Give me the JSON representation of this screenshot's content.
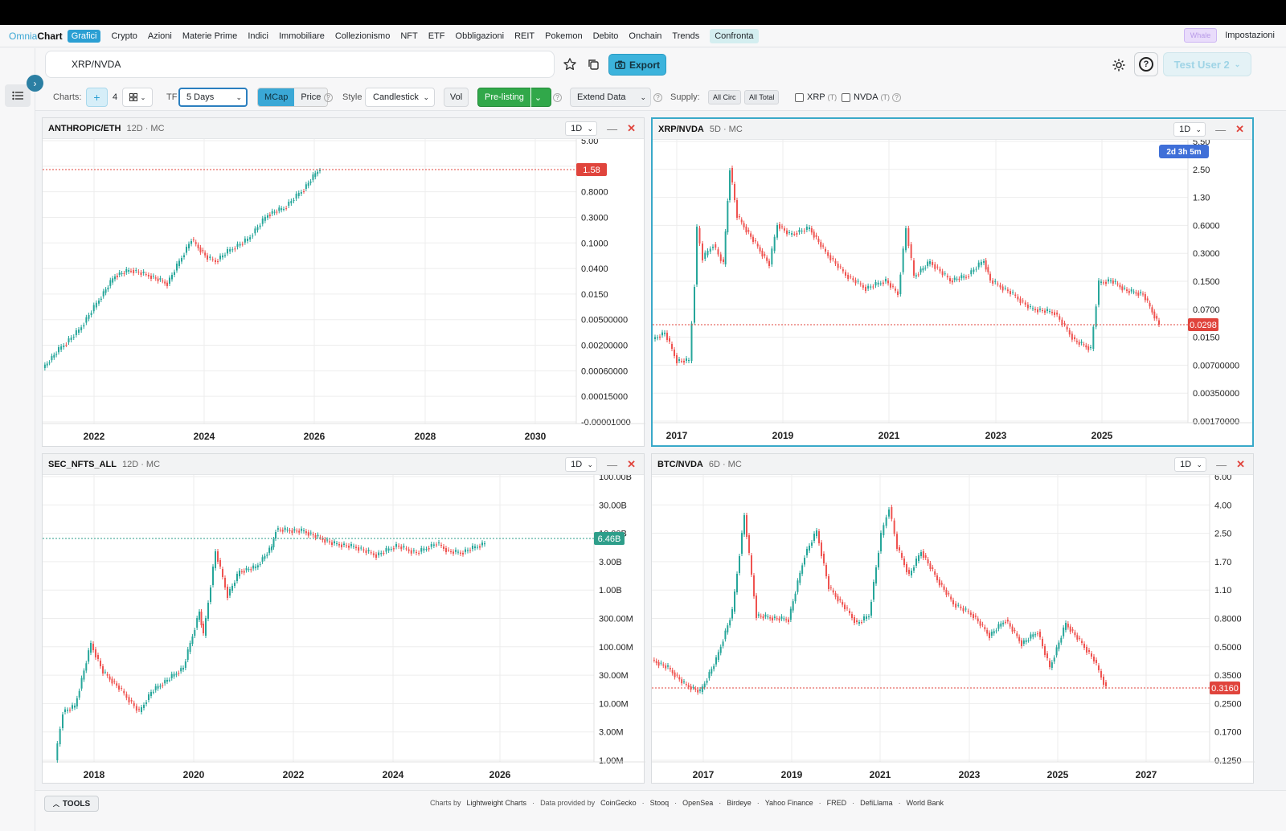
{
  "nav": {
    "logo_a": "Omnia",
    "logo_b": "Chart",
    "active": "Grafici",
    "items": [
      "Crypto",
      "Azioni",
      "Materie Prime",
      "Indici",
      "Immobiliare",
      "Collezionismo",
      "NFT",
      "ETF",
      "Obbligazioni",
      "REIT",
      "Pokemon",
      "Debito",
      "Onchain",
      "Trends"
    ],
    "compare": "Confronta",
    "whale": "Whale",
    "settings": "Impostazioni"
  },
  "search": {
    "value": "XRP/NVDA"
  },
  "header": {
    "export_label": "Export",
    "user_label": "Test User 2"
  },
  "toolbar": {
    "charts_label": "Charts:",
    "charts_count": "4",
    "tf_label": "TF",
    "tf_value": "5 Days",
    "mcap_label": "MCap",
    "price_label": "Price",
    "style_label": "Style",
    "style_value": "Candlestick",
    "vol_label": "Vol",
    "prelisting_label": "Pre-listing",
    "extend_label": "Extend Data",
    "supply_label": "Supply:",
    "all_circ": "All Circ",
    "all_total": "All Total",
    "xrp_label": "XRP",
    "xrp_tag": "(T)",
    "nvda_label": "NVDA",
    "nvda_tag": "(T)"
  },
  "charts": [
    {
      "symbol": "ANTHROPIC/ETH",
      "meta": "12D · MC",
      "tf": "1D",
      "x_ticks": [
        "2022",
        "2024",
        "2026",
        "2028",
        "2030"
      ],
      "y_ticks": [
        "5.00",
        "2.00",
        "0.8000",
        "0.3000",
        "0.1000",
        "0.0400",
        "0.0150",
        "0.00500000",
        "0.00200000",
        "0.00060000",
        "0.00015000",
        "-0.00001000"
      ],
      "last": "1.58",
      "last_color": "#e0443c"
    },
    {
      "symbol": "XRP/NVDA",
      "meta": "5D · MC",
      "tf": "1D",
      "x_ticks": [
        "2017",
        "2019",
        "2021",
        "2023",
        "2025"
      ],
      "y_ticks": [
        "5.50",
        "2.50",
        "1.30",
        "0.6000",
        "0.3000",
        "0.1500",
        "0.0700",
        "0.0150",
        "0.00700000",
        "0.00350000",
        "0.00170000"
      ],
      "last": "0.0298",
      "last_color": "#e0443c",
      "countdown": "2d 3h 5m"
    },
    {
      "symbol": "SEC_NFTS_ALL",
      "meta": "12D · MC",
      "tf": "1D",
      "x_ticks": [
        "2018",
        "2020",
        "2022",
        "2024",
        "2026"
      ],
      "y_ticks": [
        "100.00B",
        "30.00B",
        "10.00B",
        "3.00B",
        "1.00B",
        "300.00M",
        "100.00M",
        "30.00M",
        "10.00M",
        "3.00M",
        "1.00M"
      ],
      "last": "6.46B",
      "last_color": "#2e9e8a"
    },
    {
      "symbol": "BTC/NVDA",
      "meta": "6D · MC",
      "tf": "1D",
      "x_ticks": [
        "2017",
        "2019",
        "2021",
        "2023",
        "2025",
        "2027"
      ],
      "y_ticks": [
        "6.00",
        "4.00",
        "2.50",
        "1.70",
        "1.10",
        "0.8000",
        "0.5000",
        "0.3500",
        "0.2500",
        "0.1700",
        "0.1250"
      ],
      "last": "0.3160",
      "last_color": "#e0443c"
    }
  ],
  "footer": {
    "tools_label": "TOOLS",
    "credits": [
      "Charts by",
      "Lightweight Charts",
      "·",
      "Data provided by",
      "CoinGecko",
      "·",
      "Stooq",
      "·",
      "OpenSea",
      "·",
      "Birdeye",
      "·",
      "Yahoo Finance",
      "·",
      "FRED",
      "·",
      "DefiLlama",
      "·",
      "World Bank"
    ]
  },
  "colors": {
    "accent": "#2b9fd3",
    "up": "#26a69a",
    "down": "#ef5350",
    "prelisting": "#31a84a"
  }
}
